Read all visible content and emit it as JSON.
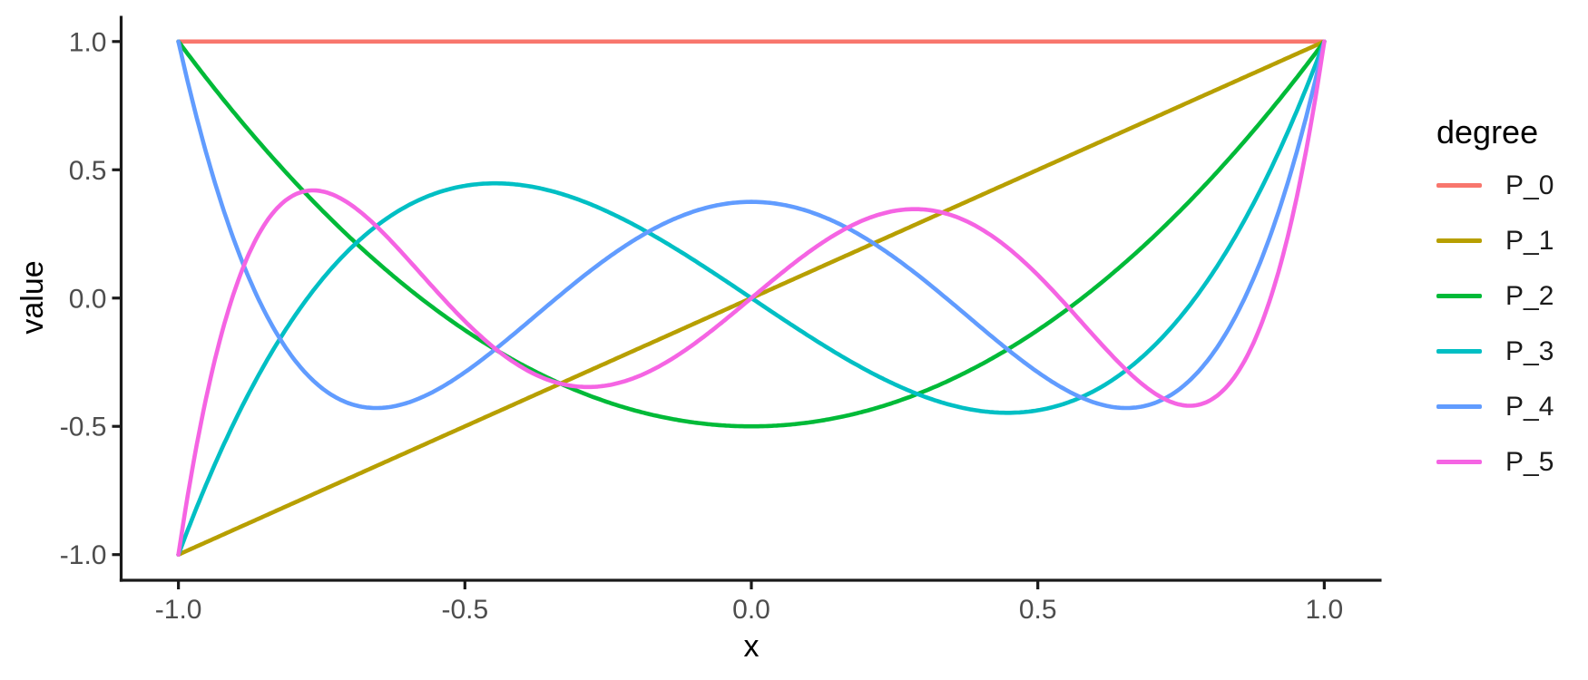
{
  "chart_data": {
    "type": "line",
    "xlabel": "x",
    "ylabel": "value",
    "legend_title": "degree",
    "legend_position": "right",
    "grid": false,
    "background_color": "#FFFFFF",
    "axis_color": "#1A1A1A",
    "tick_label_color": "#4D4D4D",
    "xlim": [
      -1.1,
      1.1
    ],
    "ylim": [
      -1.1,
      1.1
    ],
    "x_domain": [
      -1,
      1
    ],
    "x_tick_values": [
      -1.0,
      -0.5,
      0.0,
      0.5,
      1.0
    ],
    "x_tick_labels": [
      "-1.0",
      "-0.5",
      "0.0",
      "0.5",
      "1.0"
    ],
    "y_tick_values": [
      -1.0,
      -0.5,
      0.0,
      0.5,
      1.0
    ],
    "y_tick_labels": [
      "-1.0",
      "-0.5",
      "0.0",
      "0.5",
      "1.0"
    ],
    "sample_x": [
      -1.0,
      -0.9,
      -0.8,
      -0.7,
      -0.6,
      -0.5,
      -0.4,
      -0.3,
      -0.2,
      -0.1,
      0.0,
      0.1,
      0.2,
      0.3,
      0.4,
      0.5,
      0.6,
      0.7,
      0.8,
      0.9,
      1.0
    ],
    "series": [
      {
        "name": "P_0",
        "degree": 0,
        "color": "#F8766D",
        "coeffs": [
          1
        ],
        "sample_y": [
          1,
          1,
          1,
          1,
          1,
          1,
          1,
          1,
          1,
          1,
          1,
          1,
          1,
          1,
          1,
          1,
          1,
          1,
          1,
          1,
          1
        ]
      },
      {
        "name": "P_1",
        "degree": 1,
        "color": "#B79F00",
        "coeffs": [
          0,
          1
        ],
        "sample_y": [
          -1.0,
          -0.9,
          -0.8,
          -0.7,
          -0.6,
          -0.5,
          -0.4,
          -0.3,
          -0.2,
          -0.1,
          0.0,
          0.1,
          0.2,
          0.3,
          0.4,
          0.5,
          0.6,
          0.7,
          0.8,
          0.9,
          1.0
        ]
      },
      {
        "name": "P_2",
        "degree": 2,
        "color": "#00BA38",
        "coeffs": [
          -0.5,
          0,
          1.5
        ],
        "sample_y": [
          1.0,
          0.715,
          0.46,
          0.235,
          0.04,
          -0.125,
          -0.26,
          -0.365,
          -0.44,
          -0.485,
          -0.5,
          -0.485,
          -0.44,
          -0.365,
          -0.26,
          -0.125,
          0.04,
          0.235,
          0.46,
          0.715,
          1.0
        ]
      },
      {
        "name": "P_3",
        "degree": 3,
        "color": "#00BFC4",
        "coeffs": [
          0,
          -1.5,
          0,
          2.5
        ],
        "sample_y": [
          -1.0,
          -0.4725,
          -0.08,
          0.1925,
          0.36,
          0.4375,
          0.44,
          0.3825,
          0.28,
          0.1475,
          0.0,
          -0.1475,
          -0.28,
          -0.3825,
          -0.44,
          -0.4375,
          -0.36,
          -0.1925,
          0.08,
          0.4725,
          1.0
        ]
      },
      {
        "name": "P_4",
        "degree": 4,
        "color": "#619CFF",
        "coeffs": [
          0.375,
          0,
          -3.75,
          0,
          4.375
        ],
        "sample_y": [
          1.0,
          0.2079,
          -0.233,
          -0.4121,
          -0.408,
          -0.2891,
          -0.113,
          0.0729,
          0.232,
          0.3379,
          0.375,
          0.3379,
          0.232,
          0.0729,
          -0.113,
          -0.2891,
          -0.408,
          -0.4121,
          -0.233,
          0.2079,
          1.0
        ]
      },
      {
        "name": "P_5",
        "degree": 5,
        "color": "#F564E3",
        "coeffs": [
          0,
          1.875,
          0,
          -8.75,
          0,
          7.875
        ],
        "sample_y": [
          -1.0,
          0.0411,
          0.3995,
          0.3652,
          0.1526,
          -0.0898,
          -0.2706,
          -0.3454,
          -0.3075,
          -0.1788,
          0.0,
          0.1788,
          0.3075,
          0.3454,
          0.2706,
          0.0898,
          -0.1526,
          -0.3652,
          -0.3995,
          -0.0411,
          1.0
        ]
      }
    ]
  }
}
